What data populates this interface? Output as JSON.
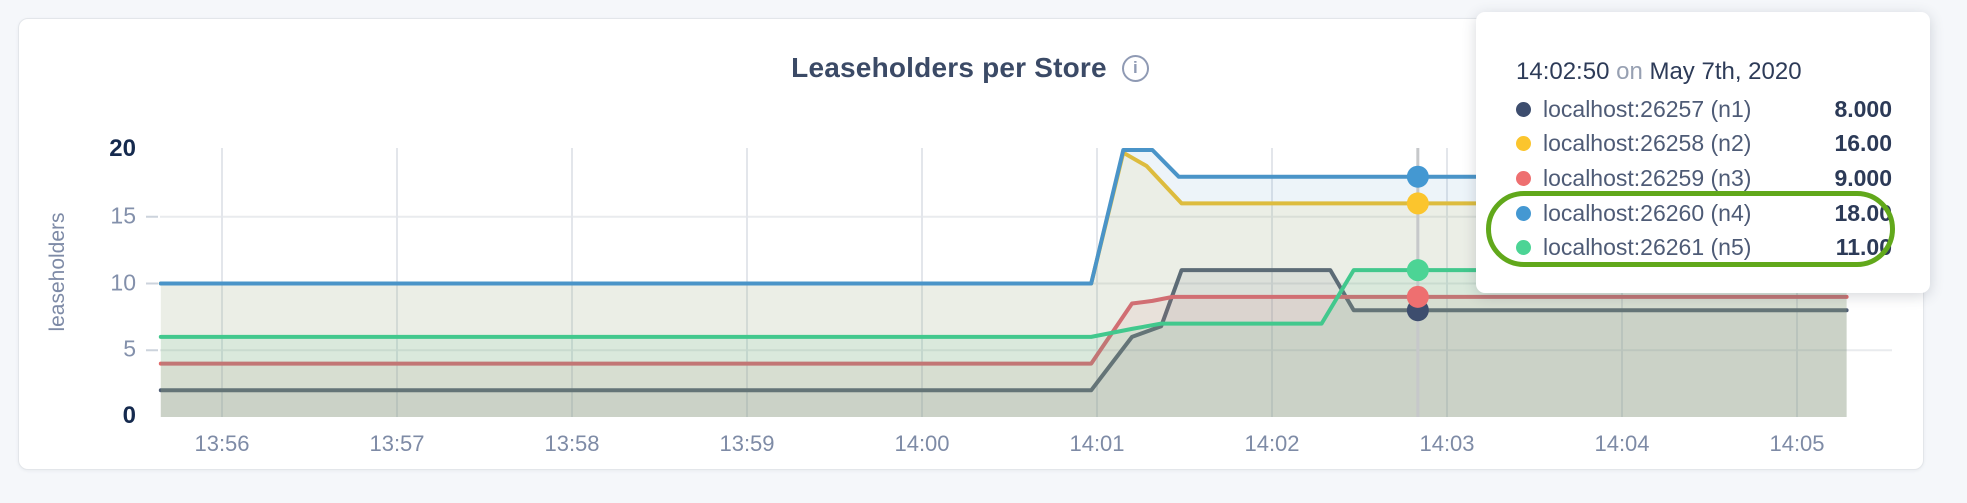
{
  "header": {
    "title": "Leaseholders per Store",
    "info_icon": "i"
  },
  "y_axis": {
    "label": "leaseholders",
    "ticks": [
      {
        "value": "0",
        "bold": true
      },
      {
        "value": "5",
        "bold": false
      },
      {
        "value": "10",
        "bold": false
      },
      {
        "value": "15",
        "bold": false
      },
      {
        "value": "20",
        "bold": true
      }
    ]
  },
  "x_axis": {
    "ticks": [
      "13:56",
      "13:57",
      "13:58",
      "13:59",
      "14:00",
      "14:01",
      "14:02",
      "14:03",
      "14:04",
      "14:05"
    ]
  },
  "tooltip": {
    "time": "14:02:50",
    "connector": "on",
    "date": "May 7th, 2020",
    "rows": [
      {
        "label": "localhost:26257 (n1)",
        "value": "8.000"
      },
      {
        "label": "localhost:26258 (n2)",
        "value": "16.00"
      },
      {
        "label": "localhost:26259 (n3)",
        "value": "9.000"
      },
      {
        "label": "localhost:26260 (n4)",
        "value": "18.00"
      },
      {
        "label": "localhost:26261 (n5)",
        "value": "11.00"
      }
    ],
    "highlighted_rows": [
      "localhost:26260 (n4)",
      "localhost:26261 (n5)"
    ],
    "highlight_color": "#61a81b"
  },
  "chart_data": {
    "type": "area",
    "title": "Leaseholders per Store",
    "ylabel": "leaseholders",
    "ylim": [
      0,
      20
    ],
    "y_ticks": [
      0,
      5,
      10,
      15,
      20
    ],
    "x_tick_labels": [
      "13:56",
      "13:57",
      "13:58",
      "13:59",
      "14:00",
      "14:01",
      "14:02",
      "14:03",
      "14:04",
      "14:05"
    ],
    "x_tick_seconds": [
      0,
      60,
      120,
      180,
      240,
      300,
      360,
      420,
      480,
      540
    ],
    "x_domain_seconds": [
      -21,
      557
    ],
    "grid": true,
    "fill_opacity": 0.1,
    "hover": {
      "time_seconds": 410,
      "label": "14:02:50 on May 7th, 2020"
    },
    "series": [
      {
        "name": "localhost:26257 (n1)",
        "color": "#4f5d75",
        "dot_color": "#3d4d6e",
        "hover_value": 8,
        "display_value": "8.000",
        "points": [
          [
            -21,
            2
          ],
          [
            298,
            2
          ],
          [
            312,
            6
          ],
          [
            322,
            6.8
          ],
          [
            329,
            11
          ],
          [
            380,
            11
          ],
          [
            388,
            8
          ],
          [
            557,
            8
          ]
        ]
      },
      {
        "name": "localhost:26258 (n2)",
        "color": "#eec12f",
        "dot_color": "#fbc52d",
        "hover_value": 16,
        "display_value": "16.00",
        "points": [
          [
            -21,
            10
          ],
          [
            298,
            10
          ],
          [
            309,
            19.8
          ],
          [
            317,
            18.8
          ],
          [
            329,
            16
          ],
          [
            557,
            16
          ]
        ]
      },
      {
        "name": "localhost:26259 (n3)",
        "color": "#e06a6a",
        "dot_color": "#ee6f70",
        "hover_value": 9,
        "display_value": "9.000",
        "points": [
          [
            -21,
            4
          ],
          [
            298,
            4
          ],
          [
            312,
            8.5
          ],
          [
            319,
            8.7
          ],
          [
            326,
            9
          ],
          [
            557,
            9
          ]
        ]
      },
      {
        "name": "localhost:26260 (n4)",
        "color": "#4a94c8",
        "dot_color": "#4498d2",
        "hover_value": 18,
        "display_value": "18.00",
        "points": [
          [
            -21,
            10
          ],
          [
            298,
            10
          ],
          [
            309,
            20
          ],
          [
            319,
            20
          ],
          [
            328,
            18
          ],
          [
            557,
            18
          ]
        ]
      },
      {
        "name": "localhost:26261 (n5)",
        "color": "#42c88d",
        "dot_color": "#4cd495",
        "hover_value": 11,
        "display_value": "11.00",
        "points": [
          [
            -21,
            6
          ],
          [
            298,
            6
          ],
          [
            312,
            6.6
          ],
          [
            322,
            7
          ],
          [
            377,
            7
          ],
          [
            388,
            11
          ],
          [
            557,
            11
          ]
        ]
      }
    ]
  }
}
